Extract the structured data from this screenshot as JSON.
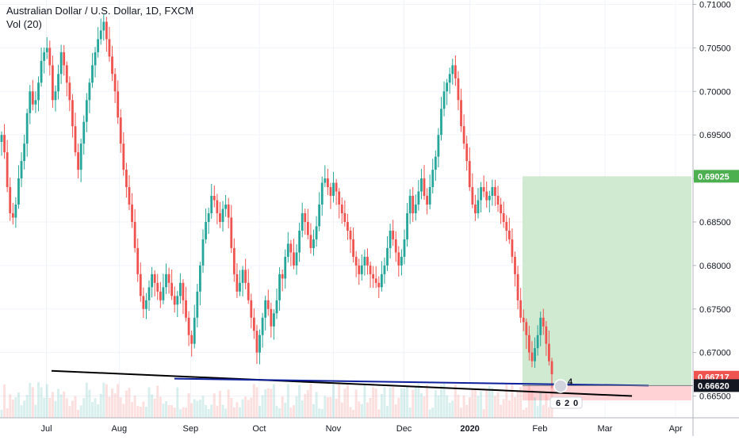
{
  "header": {
    "symbol_title": "Australian Dollar / U.S. Dollar, 1D, FXCM",
    "volume_label": "Vol (20)"
  },
  "colors": {
    "up": "#26a69a",
    "down": "#ef5350",
    "grid": "#f0f3fa",
    "profit_zone": "#c8e6c9",
    "loss_zone": "#ffcdd2",
    "trendline": "#000000",
    "level_line": "#0d1f9b",
    "axis_text": "#131722"
  },
  "chart_data": {
    "type": "candlestick",
    "title": "Australian Dollar / U.S. Dollar, 1D, FXCM",
    "indicator": "Vol (20)",
    "x_ticks": [
      "Jul",
      "Aug",
      "Sep",
      "Oct",
      "Nov",
      "Dec",
      "2020",
      "Feb",
      "Mar",
      "Apr"
    ],
    "y_ticks": [
      "0.71000",
      "0.70500",
      "0.70000",
      "0.69500",
      "0.69000",
      "0.68500",
      "0.68000",
      "0.67500",
      "0.67000",
      "0.66500"
    ],
    "ylim": [
      0.6625,
      0.7105
    ],
    "price_labels": [
      {
        "value": 0.69025,
        "text": "0.69025",
        "color": "#4caf50"
      },
      {
        "value": 0.66717,
        "text": "0.66717",
        "color": "#ef5350"
      },
      {
        "value": 0.6662,
        "text": "0.66620",
        "color": "#131722"
      }
    ],
    "position": {
      "type": "long",
      "entry": 0.6662,
      "target": 0.69025,
      "stop": 0.6645
    },
    "trendline": {
      "from": {
        "x": "Jun 26",
        "y": 0.6679
      },
      "to": {
        "x": "Mar 14",
        "y": 0.665
      }
    },
    "level_line": {
      "from": {
        "x": "Aug 25",
        "y": 0.667
      },
      "to": {
        "x": "Mar 20",
        "y": 0.6662
      }
    },
    "markers": [
      "4",
      "6",
      "2",
      "0"
    ],
    "closes": [
      0.695,
      0.693,
      0.689,
      0.686,
      0.6855,
      0.687,
      0.69,
      0.692,
      0.694,
      0.6975,
      0.7,
      0.6985,
      0.699,
      0.701,
      0.7035,
      0.7045,
      0.705,
      0.703,
      0.699,
      0.7,
      0.702,
      0.7045,
      0.703,
      0.701,
      0.699,
      0.696,
      0.693,
      0.691,
      0.694,
      0.6965,
      0.699,
      0.701,
      0.703,
      0.7045,
      0.706,
      0.707,
      0.708,
      0.706,
      0.704,
      0.702,
      0.7,
      0.697,
      0.694,
      0.691,
      0.689,
      0.687,
      0.685,
      0.682,
      0.679,
      0.6765,
      0.675,
      0.676,
      0.6775,
      0.679,
      0.678,
      0.677,
      0.676,
      0.6775,
      0.679,
      0.678,
      0.6765,
      0.6755,
      0.6765,
      0.678,
      0.676,
      0.674,
      0.672,
      0.671,
      0.674,
      0.677,
      0.68,
      0.683,
      0.685,
      0.686,
      0.688,
      0.6875,
      0.686,
      0.685,
      0.6865,
      0.687,
      0.6855,
      0.682,
      0.679,
      0.677,
      0.678,
      0.6795,
      0.678,
      0.676,
      0.674,
      0.6725,
      0.67,
      0.672,
      0.674,
      0.676,
      0.675,
      0.673,
      0.6745,
      0.676,
      0.679,
      0.6785,
      0.681,
      0.6825,
      0.6815,
      0.68,
      0.6815,
      0.684,
      0.686,
      0.685,
      0.6835,
      0.682,
      0.683,
      0.6845,
      0.687,
      0.6895,
      0.69,
      0.689,
      0.688,
      0.6895,
      0.6885,
      0.687,
      0.686,
      0.685,
      0.684,
      0.683,
      0.681,
      0.68,
      0.679,
      0.68,
      0.681,
      0.68,
      0.679,
      0.6785,
      0.678,
      0.6775,
      0.679,
      0.68,
      0.682,
      0.684,
      0.683,
      0.6815,
      0.68,
      0.681,
      0.683,
      0.686,
      0.688,
      0.686,
      0.687,
      0.6885,
      0.69,
      0.688,
      0.687,
      0.689,
      0.691,
      0.6925,
      0.695,
      0.698,
      0.7,
      0.701,
      0.702,
      0.703,
      0.7015,
      0.699,
      0.696,
      0.694,
      0.692,
      0.689,
      0.687,
      0.686,
      0.6875,
      0.689,
      0.6885,
      0.6875,
      0.688,
      0.689,
      0.688,
      0.687,
      0.686,
      0.685,
      0.684,
      0.683,
      0.681,
      0.679,
      0.676,
      0.674,
      0.6735,
      0.672,
      0.67,
      0.669,
      0.6705,
      0.672,
      0.674,
      0.673,
      0.671,
      0.669,
      0.6675
    ]
  }
}
